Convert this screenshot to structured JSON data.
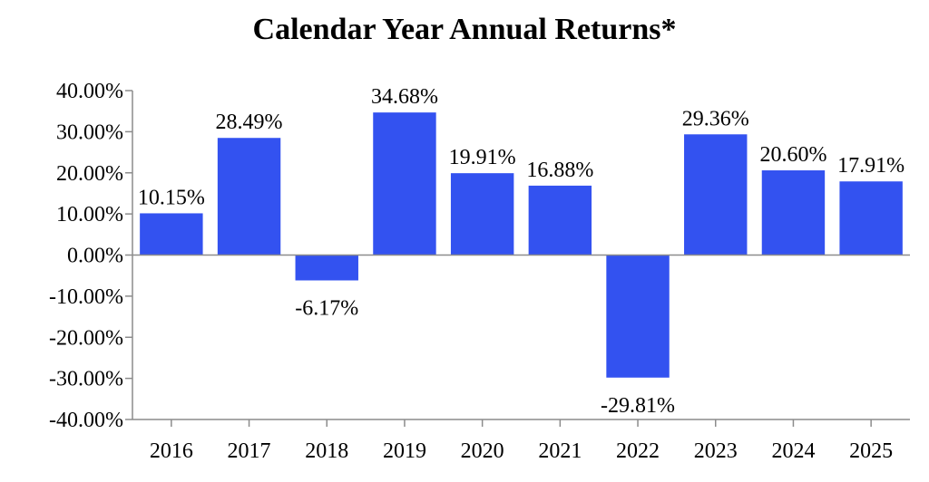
{
  "chart_data": {
    "type": "bar",
    "title": "Calendar Year Annual Returns*",
    "categories": [
      "2016",
      "2017",
      "2018",
      "2019",
      "2020",
      "2021",
      "2022",
      "2023",
      "2024",
      "2025"
    ],
    "values": [
      10.15,
      28.49,
      -6.17,
      34.68,
      19.91,
      16.88,
      -29.81,
      29.36,
      20.6,
      17.91
    ],
    "data_labels": [
      "10.15%",
      "28.49%",
      "-6.17%",
      "34.68%",
      "19.91%",
      "16.88%",
      "-29.81%",
      "29.36%",
      "20.60%",
      "17.91%"
    ],
    "ylim": [
      -40,
      40
    ],
    "y_ticks": [
      40,
      30,
      20,
      10,
      0,
      -10,
      -20,
      -30,
      -40
    ],
    "y_tick_labels": [
      "40.00%",
      "30.00%",
      "20.00%",
      "10.00%",
      "0.00%",
      "-10.00%",
      "-20.00%",
      "-30.00%",
      "-40.00%"
    ],
    "xlabel": "",
    "ylabel": "",
    "grid": false,
    "legend": "none",
    "bar_color": "#3352F0",
    "axis_color": "#8c8c8c"
  }
}
